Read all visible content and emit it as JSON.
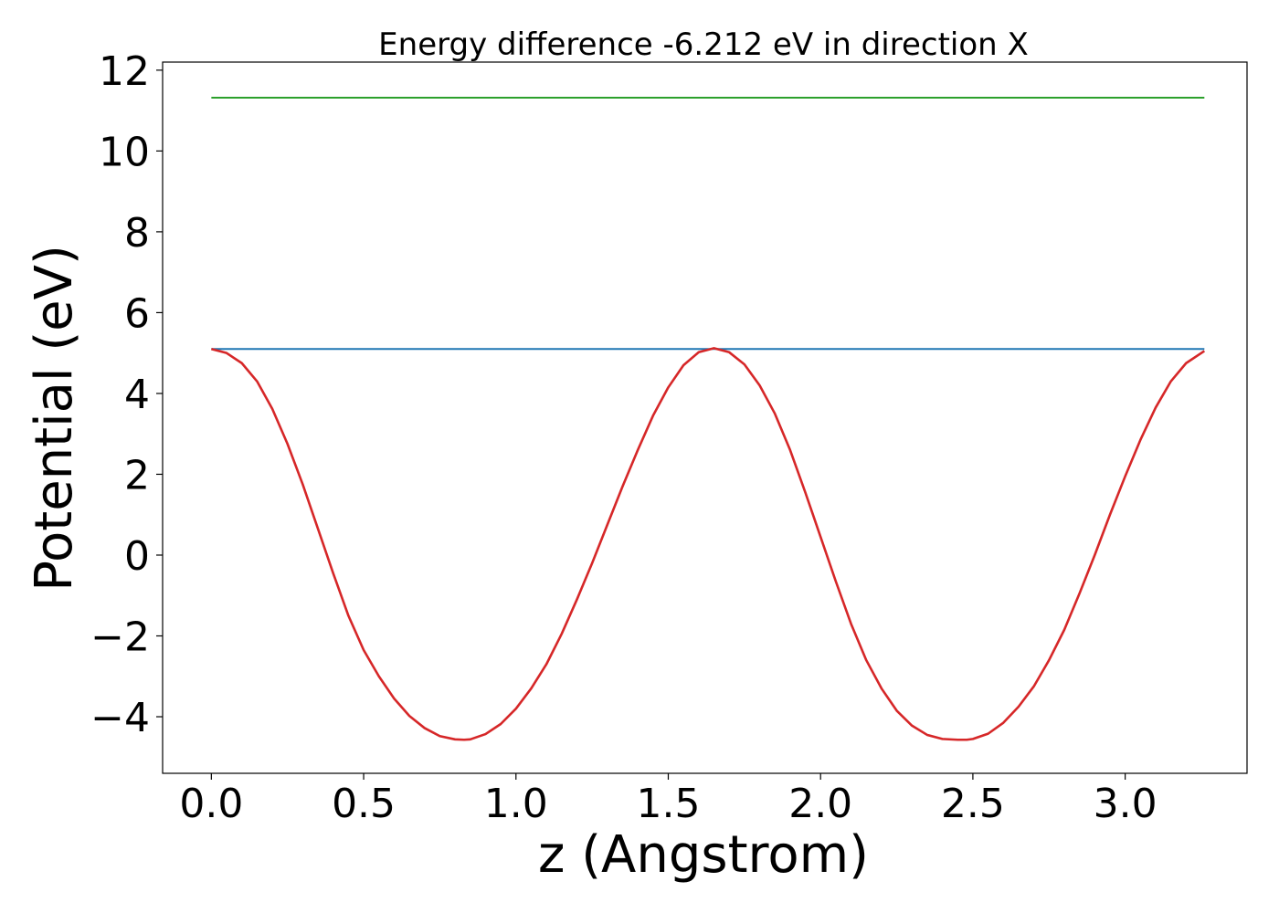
{
  "chart_data": {
    "type": "line",
    "title": "Energy difference -6.212 eV in direction X",
    "xlabel": "z (Angstrom)",
    "ylabel": "Potential (eV)",
    "xlim": [
      -0.16,
      3.4
    ],
    "ylim": [
      -5.4,
      12.2
    ],
    "xticks": [
      0.0,
      0.5,
      1.0,
      1.5,
      2.0,
      2.5,
      3.0
    ],
    "xtick_labels": [
      "0.0",
      "0.5",
      "1.0",
      "1.5",
      "2.0",
      "2.5",
      "3.0"
    ],
    "yticks": [
      -4,
      -2,
      0,
      2,
      4,
      6,
      8,
      10,
      12
    ],
    "ytick_labels": [
      "−4",
      "−2",
      "0",
      "2",
      "4",
      "6",
      "8",
      "10",
      "12"
    ],
    "grid": false,
    "series": [
      {
        "kind": "hline",
        "color": "#2ca02c",
        "x": [
          0.0,
          3.26
        ],
        "y": [
          11.32,
          11.32
        ]
      },
      {
        "kind": "hline",
        "color": "#1f77b4",
        "x": [
          0.0,
          3.26
        ],
        "y": [
          5.1,
          5.1
        ]
      },
      {
        "kind": "curve",
        "color": "#d62728",
        "x": [
          0.0,
          0.05,
          0.1,
          0.15,
          0.2,
          0.25,
          0.3,
          0.35,
          0.4,
          0.45,
          0.5,
          0.55,
          0.6,
          0.65,
          0.7,
          0.75,
          0.8,
          0.83,
          0.85,
          0.9,
          0.95,
          1.0,
          1.05,
          1.1,
          1.15,
          1.2,
          1.25,
          1.3,
          1.35,
          1.4,
          1.45,
          1.5,
          1.55,
          1.6,
          1.65,
          1.7,
          1.75,
          1.8,
          1.85,
          1.9,
          1.95,
          2.0,
          2.05,
          2.1,
          2.15,
          2.2,
          2.25,
          2.3,
          2.35,
          2.4,
          2.45,
          2.48,
          2.5,
          2.55,
          2.6,
          2.65,
          2.7,
          2.75,
          2.8,
          2.85,
          2.9,
          2.95,
          3.0,
          3.05,
          3.1,
          3.15,
          3.2,
          3.26
        ],
        "y": [
          5.1,
          5.0,
          4.75,
          4.3,
          3.62,
          2.75,
          1.75,
          0.65,
          -0.45,
          -1.5,
          -2.35,
          -3.0,
          -3.55,
          -3.98,
          -4.28,
          -4.48,
          -4.56,
          -4.57,
          -4.56,
          -4.43,
          -4.18,
          -3.8,
          -3.3,
          -2.7,
          -1.95,
          -1.1,
          -0.2,
          0.75,
          1.7,
          2.6,
          3.45,
          4.15,
          4.7,
          5.02,
          5.12,
          5.02,
          4.72,
          4.2,
          3.5,
          2.6,
          1.55,
          0.45,
          -0.65,
          -1.7,
          -2.6,
          -3.3,
          -3.85,
          -4.22,
          -4.45,
          -4.55,
          -4.57,
          -4.57,
          -4.55,
          -4.42,
          -4.15,
          -3.75,
          -3.25,
          -2.6,
          -1.85,
          -0.95,
          0.0,
          1.0,
          1.95,
          2.85,
          3.65,
          4.3,
          4.75,
          5.05
        ]
      }
    ]
  }
}
